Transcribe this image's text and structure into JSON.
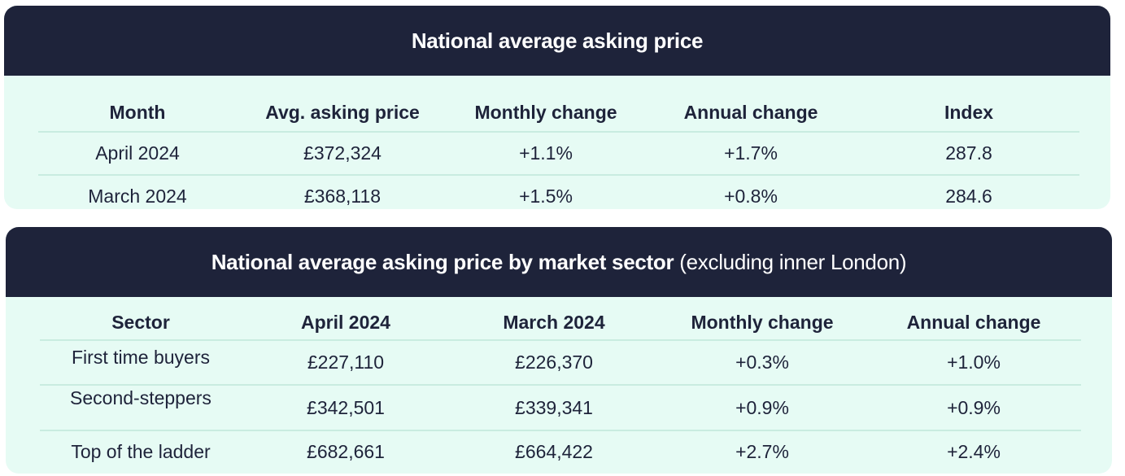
{
  "table1": {
    "title": "National average asking price",
    "headers": [
      "Month",
      "Avg. asking price",
      "Monthly change",
      "Annual change",
      "Index"
    ],
    "rows": [
      [
        "April 2024",
        "£372,324",
        "+1.1%",
        "+1.7%",
        "287.8"
      ],
      [
        "March 2024",
        "£368,118",
        "+1.5%",
        "+0.8%",
        "284.6"
      ]
    ]
  },
  "table2": {
    "title": "National average asking price by market sector",
    "subtitle": "(excluding inner London)",
    "headers": [
      "Sector",
      "April 2024",
      "March 2024",
      "Monthly change",
      "Annual change"
    ],
    "rows": [
      [
        "First time buyers",
        "£227,110",
        "£226,370",
        "+0.3%",
        "+1.0%"
      ],
      [
        "Second-steppers",
        "£342,501",
        "£339,341",
        "+0.9%",
        "+0.9%"
      ],
      [
        "Top of the ladder",
        "£682,661",
        "£664,422",
        "+2.7%",
        "+2.4%"
      ]
    ]
  },
  "colors": {
    "header_bg": "#1e233a",
    "card_bg": "#e6fbf4",
    "divider": "#c9ece0",
    "text": "#1e233a"
  }
}
